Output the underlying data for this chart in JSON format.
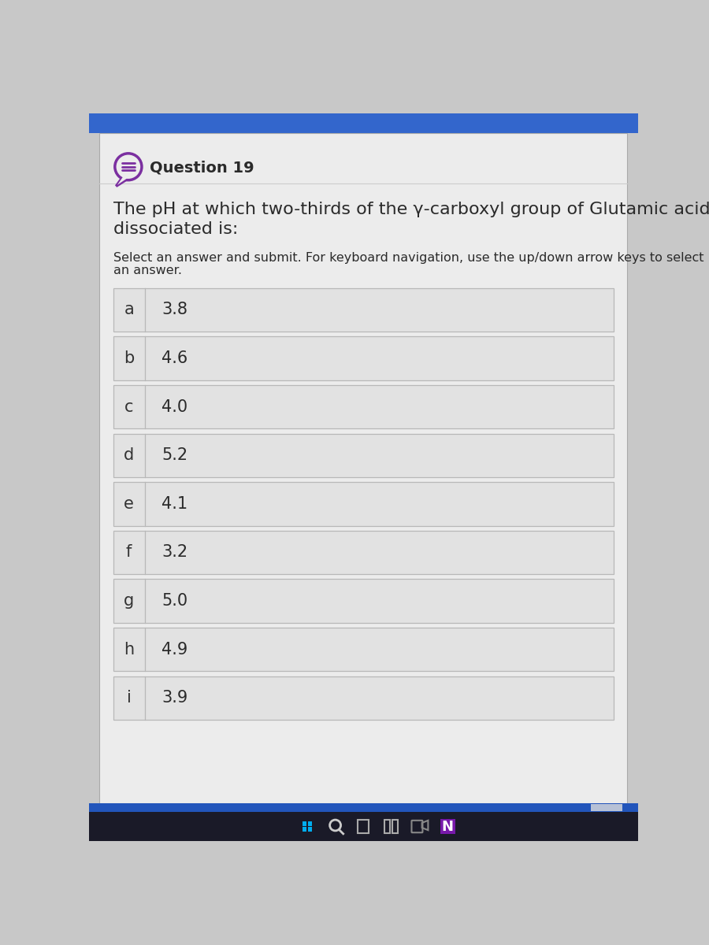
{
  "question_number": "Question 19",
  "question_text_line1": "The pH at which two-thirds of the γ-carboxyl group of Glutamic acid is",
  "question_text_line2": "dissociated is:",
  "instruction_line1": "Select an answer and submit. For keyboard navigation, use the up/down arrow keys to select",
  "instruction_line2": "an answer.",
  "options": [
    {
      "letter": "a",
      "value": "3.8"
    },
    {
      "letter": "b",
      "value": "4.6"
    },
    {
      "letter": "c",
      "value": "4.0"
    },
    {
      "letter": "d",
      "value": "5.2"
    },
    {
      "letter": "e",
      "value": "4.1"
    },
    {
      "letter": "f",
      "value": "3.2"
    },
    {
      "letter": "g",
      "value": "5.0"
    },
    {
      "letter": "h",
      "value": "4.9"
    },
    {
      "letter": "i",
      "value": "3.9"
    }
  ],
  "outer_bg": "#c8c8c8",
  "panel_bg": "#ececec",
  "panel_bg2": "#e8e8e8",
  "row_bg": "#e2e2e2",
  "row_bg_dark": "#d8d8d8",
  "border_color": "#b8b8b8",
  "text_color": "#2a2a2a",
  "letter_color": "#333333",
  "header_bar_color": "#3366cc",
  "bottom_blue_color": "#2255bb",
  "taskbar_color": "#1a1a28",
  "icon_color": "#7b2fa0",
  "title_fontsize": 14,
  "question_fontsize": 16,
  "instruction_fontsize": 11.5,
  "option_letter_fontsize": 15,
  "option_value_fontsize": 15
}
